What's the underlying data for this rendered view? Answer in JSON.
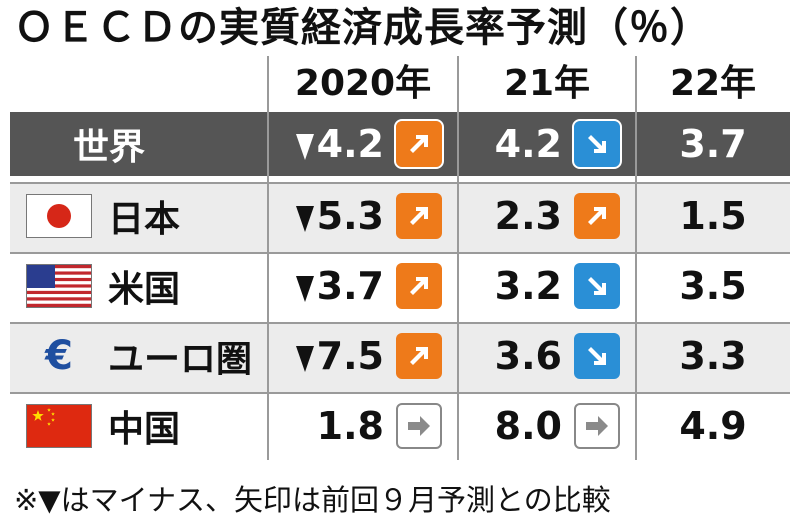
{
  "title": "ＯＥＣＤの実質経済成長率予測（％）",
  "columns": [
    "2020年",
    "21年",
    "22年"
  ],
  "chart_data": {
    "type": "table",
    "columns": [
      "2020年",
      "21年",
      "22年"
    ],
    "rows": [
      {
        "label": "世界",
        "flag": "",
        "values": [
          "4.2",
          "4.2",
          "3.7"
        ],
        "negative": [
          true,
          false,
          false
        ],
        "revision": [
          "up",
          "down",
          null
        ]
      },
      {
        "label": "日本",
        "flag": "japan-flag",
        "values": [
          "5.3",
          "2.3",
          "1.5"
        ],
        "negative": [
          true,
          false,
          false
        ],
        "revision": [
          "up",
          "up",
          null
        ]
      },
      {
        "label": "米国",
        "flag": "us-flag",
        "values": [
          "3.7",
          "3.2",
          "3.5"
        ],
        "negative": [
          true,
          false,
          false
        ],
        "revision": [
          "up",
          "down",
          null
        ]
      },
      {
        "label": "ユーロ圏",
        "flag": "euro-symbol",
        "values": [
          "7.5",
          "3.6",
          "3.3"
        ],
        "negative": [
          true,
          false,
          false
        ],
        "revision": [
          "up",
          "down",
          null
        ]
      },
      {
        "label": "中国",
        "flag": "china-flag",
        "values": [
          "1.8",
          "8.0",
          "4.9"
        ],
        "negative": [
          false,
          false,
          false
        ],
        "revision": [
          "flat",
          "flat",
          null
        ]
      }
    ]
  },
  "colors": {
    "up": "#ee7a1a",
    "down": "#2a8fd6",
    "flat": "#888888",
    "header_bg": "#555555",
    "alt_row": "#ececec"
  },
  "footer": "※▼はマイナス、矢印は前回９月予測との比較"
}
